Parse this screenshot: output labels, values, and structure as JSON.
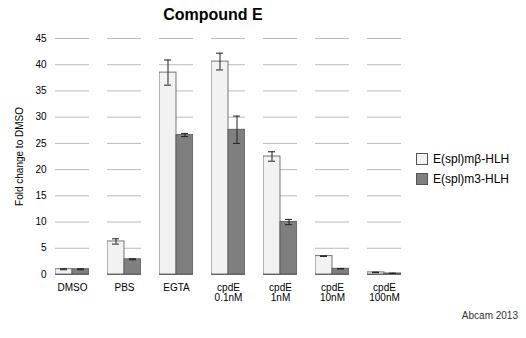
{
  "chart_data": {
    "type": "bar",
    "title": "Compound E",
    "ylabel": "Fold change to DMSO",
    "categories": [
      "DMSO",
      "PBS",
      "EGTA",
      "cpdE\n0.1nM",
      "cpdE\n1nM",
      "cpdE\n10nM",
      "cpdE\n100nM"
    ],
    "series": [
      {
        "name": "E(spl)mβ-HLH",
        "color": "#f2f2f2",
        "values": [
          1.0,
          6.3,
          38.5,
          40.6,
          22.5,
          3.5,
          0.4
        ],
        "errors": [
          0.1,
          0.5,
          2.4,
          1.6,
          0.9,
          0.05,
          0.05
        ]
      },
      {
        "name": "E(spl)m3-HLH",
        "color": "#7f7f7f",
        "values": [
          1.0,
          2.9,
          26.6,
          27.6,
          10.0,
          1.1,
          0.2
        ],
        "errors": [
          0.1,
          0.1,
          0.3,
          2.6,
          0.5,
          0.05,
          0.05
        ]
      }
    ],
    "ylim": [
      0,
      45
    ],
    "yticks": [
      0,
      5,
      10,
      15,
      20,
      25,
      30,
      35,
      40,
      45
    ],
    "grid": true,
    "legend": "right",
    "annotation": "Abcam 2013"
  }
}
